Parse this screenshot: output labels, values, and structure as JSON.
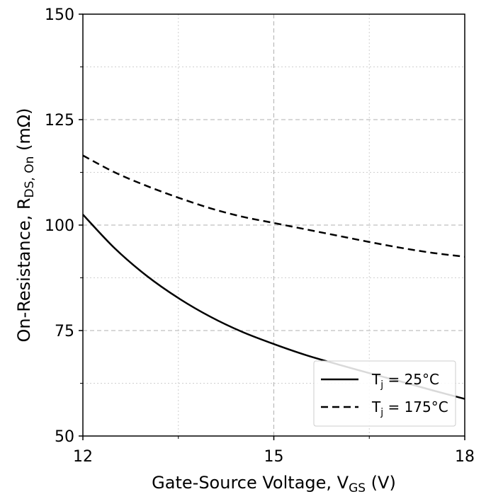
{
  "chart_data": {
    "type": "line",
    "xlabel": "Gate-Source Voltage, V",
    "xlabel_sub": "GS",
    "xlabel_unit": " (V)",
    "ylabel": "On-Resistance, R",
    "ylabel_sub": "DS, On",
    "ylabel_unit": " (mΩ)",
    "xlim": [
      12,
      18
    ],
    "ylim": [
      50,
      150
    ],
    "x_ticks": [
      "12",
      "15",
      "18"
    ],
    "y_ticks": [
      "50",
      "75",
      "100",
      "125",
      "150"
    ],
    "grid": true,
    "legend_position": "bottom-right",
    "x": [
      12,
      12.5,
      13,
      13.5,
      14,
      14.5,
      15,
      15.5,
      16,
      16.5,
      17,
      17.5,
      18
    ],
    "series": [
      {
        "name": "T",
        "name_sub": "j",
        "name_suffix": " = 25°C",
        "style": "solid",
        "color": "#000000",
        "values": [
          102.5,
          94.5,
          88.0,
          82.7,
          78.3,
          74.7,
          71.8,
          69.2,
          67.0,
          64.9,
          62.9,
          60.8,
          58.8
        ]
      },
      {
        "name": "T",
        "name_sub": "j",
        "name_suffix": " = 175°C",
        "style": "dashed",
        "color": "#000000",
        "values": [
          116.5,
          112.5,
          109.3,
          106.5,
          104.0,
          102.0,
          100.5,
          99.0,
          97.5,
          96.0,
          94.6,
          93.4,
          92.5
        ]
      }
    ]
  }
}
